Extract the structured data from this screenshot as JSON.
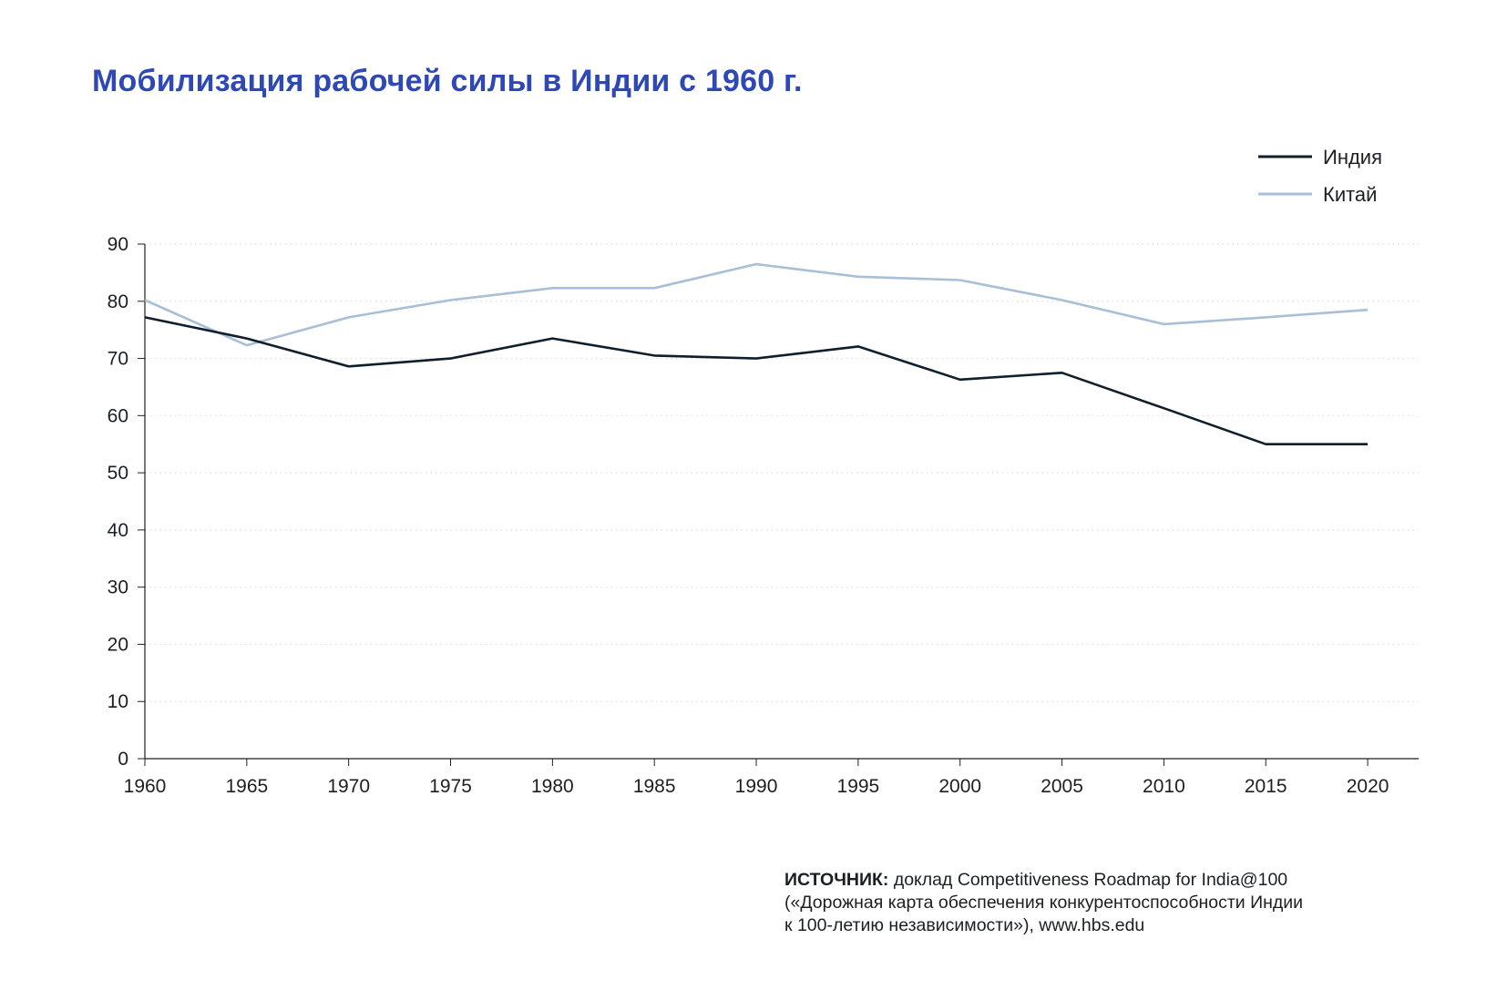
{
  "title": "Мобилизация рабочей силы в Индии с 1960 г.",
  "colors": {
    "title": "#2e49b5",
    "india": "#0f1f2b",
    "china": "#a9bfd6",
    "axis": "#1b1f24",
    "grid": "#d9dde2"
  },
  "legend": {
    "placement": "top-right",
    "items": [
      {
        "label": "Индия",
        "color": "#0f1f2b"
      },
      {
        "label": "Китай",
        "color": "#a9bfd6"
      }
    ]
  },
  "chart_data": {
    "type": "line",
    "title": "Мобилизация рабочей силы в Индии с 1960 г.",
    "xlabel": "",
    "ylabel": "",
    "x": [
      1960,
      1965,
      1970,
      1975,
      1980,
      1985,
      1990,
      1995,
      2000,
      2005,
      2010,
      2015,
      2020
    ],
    "xlim": [
      1960,
      2022.5
    ],
    "ylim": [
      0,
      90
    ],
    "xticks": [
      "1960",
      "1965",
      "1970",
      "1975",
      "1980",
      "1985",
      "1990",
      "1995",
      "2000",
      "2005",
      "2010",
      "2015",
      "2020"
    ],
    "yticks": [
      "0",
      "10",
      "20",
      "30",
      "40",
      "50",
      "60",
      "70",
      "80",
      "90"
    ],
    "grid": "horizontal dotted",
    "series": [
      {
        "name": "Индия",
        "x": [
          1960,
          1965,
          1970,
          1975,
          1980,
          1985,
          1990,
          1995,
          2000,
          2005,
          2010,
          2015,
          2020
        ],
        "values": [
          77.2,
          73.5,
          68.6,
          70.0,
          73.5,
          70.5,
          70.0,
          72.1,
          66.3,
          67.5,
          61.3,
          55.0,
          55.0
        ]
      },
      {
        "name": "Китай",
        "x": [
          1960,
          1965,
          1970,
          1975,
          1980,
          1985,
          1990,
          1995,
          2000,
          2005,
          2010,
          2015,
          2020
        ],
        "values": [
          80.2,
          72.3,
          77.2,
          80.2,
          82.3,
          82.3,
          86.5,
          84.3,
          83.7,
          80.2,
          76.0,
          77.2,
          78.5
        ]
      }
    ]
  },
  "source": {
    "label": "ИСТОЧНИК:",
    "line1": " доклад Competitiveness Roadmap for India@100",
    "line2": "(«Дорожная карта обеспечения конкурентоспособности Индии",
    "line3": "к 100-летию независимости»), www.hbs.edu"
  }
}
